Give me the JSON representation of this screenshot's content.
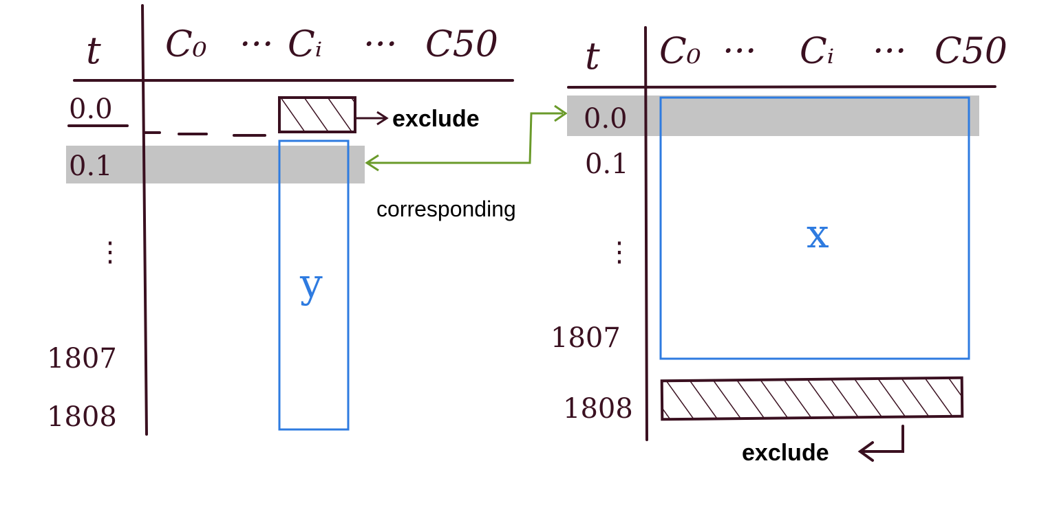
{
  "colors": {
    "ink": "#3a1020",
    "highlight": "#c4c4c4",
    "blue": "#2e7be0",
    "green": "#6a9a2a"
  },
  "left_table": {
    "t_header": "t",
    "columns": [
      "C₀",
      "···",
      "Cᵢ",
      "···",
      "C50"
    ],
    "rows": [
      "0.0",
      "0.1",
      "1807",
      "1808"
    ],
    "ellipsis": "⋮",
    "exclude_label": "exclude",
    "y_label": "y"
  },
  "right_table": {
    "t_header": "t",
    "columns": [
      "C₀",
      "···",
      "Cᵢ",
      "···",
      "C50"
    ],
    "rows": [
      "0.0",
      "0.1",
      "1807",
      "1808"
    ],
    "ellipsis": "⋮",
    "exclude_label": "exclude",
    "x_label": "x"
  },
  "link_label": "corresponding"
}
